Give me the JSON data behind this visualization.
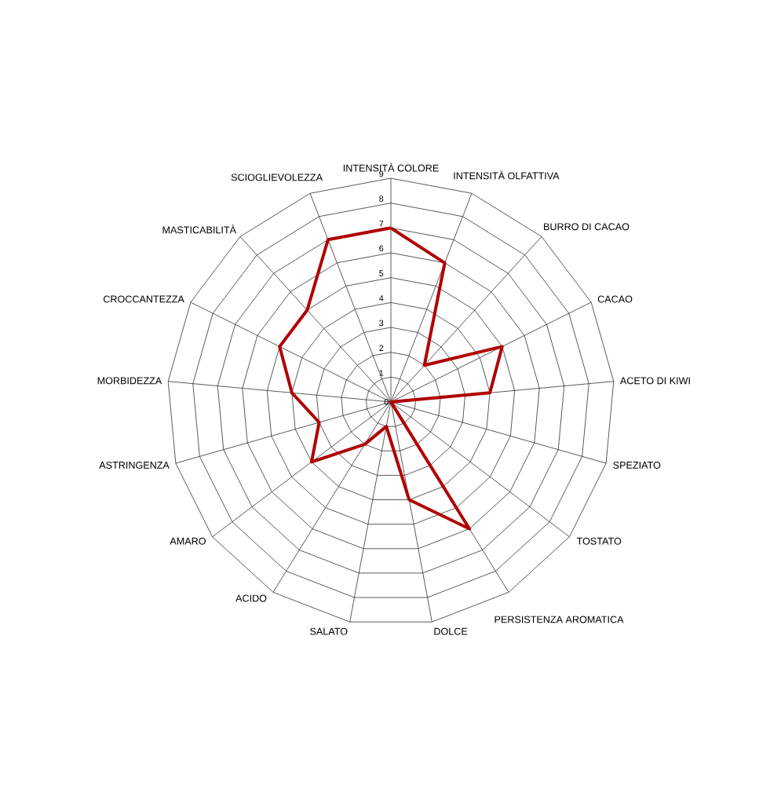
{
  "chart_data": {
    "type": "radar",
    "categories": [
      "INTENSITÀ COLORE",
      "INTENSITÀ OLFATTIVA",
      "BURRO DI CACAO",
      "CACAO",
      "ACETO DI KIWI",
      "SPEZIATO",
      "TOSTATO",
      "PERSISTENZA AROMATICA",
      "DOLCE",
      "SALATO",
      "ACIDO",
      "AMARO",
      "ASTRINGENZA",
      "MORBIDEZZA",
      "CROCCANTEZZA",
      "MASTICABILITÀ",
      "SCIOGLIEVOLEZZA"
    ],
    "series": [
      {
        "color": "#b00000",
        "values": [
          7,
          6,
          2,
          5,
          4,
          0,
          0,
          6,
          4,
          1,
          2,
          4,
          3,
          4,
          5,
          5,
          7
        ]
      }
    ],
    "ylim": [
      0,
      9
    ],
    "yticks": [
      0,
      1,
      2,
      3,
      4,
      5,
      6,
      7,
      8,
      9
    ],
    "grid": true
  }
}
